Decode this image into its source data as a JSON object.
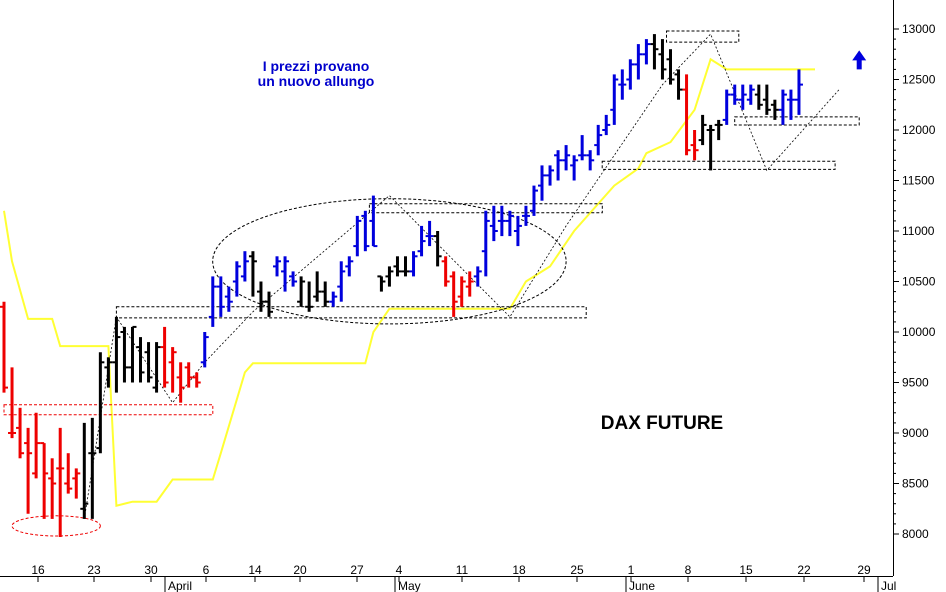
{
  "chart_data": {
    "type": "ohlc",
    "title": "DAX FUTURE",
    "annotation": [
      "I prezzi provano",
      "un nuovo allungo"
    ],
    "y_ticks": [
      8000,
      8500,
      9000,
      9500,
      10000,
      10500,
      11000,
      11500,
      12000,
      12500,
      13000
    ],
    "ylim": [
      7920,
      13150
    ],
    "x_ticks": [
      "16",
      "23",
      "30",
      "6",
      "14",
      "20",
      "27",
      "4",
      "11",
      "18",
      "25",
      "1",
      "8",
      "15",
      "22",
      "29"
    ],
    "month_labels": [
      "April",
      "May",
      "June",
      "Jul"
    ],
    "grid": false,
    "colors": {
      "up": "#0000dd",
      "neutral": "#000000",
      "down": "#ee0000",
      "trail": "#ffff33",
      "box": "#000000",
      "red_box": "#ee0000",
      "arrow": "#0000dd"
    },
    "bars": [
      {
        "o": 10250,
        "h": 10300,
        "l": 9400,
        "c": 9450,
        "col": "down"
      },
      {
        "o": 9000,
        "h": 9650,
        "l": 8950,
        "c": 9000,
        "col": "down"
      },
      {
        "o": 9050,
        "h": 9250,
        "l": 8750,
        "c": 8800,
        "col": "down"
      },
      {
        "o": 8900,
        "h": 9050,
        "l": 8200,
        "c": 8800,
        "col": "down"
      },
      {
        "o": 8600,
        "h": 9200,
        "l": 8550,
        "c": 8900,
        "col": "down"
      },
      {
        "o": 8900,
        "h": 8900,
        "l": 8150,
        "c": 8600,
        "col": "down"
      },
      {
        "o": 8550,
        "h": 8750,
        "l": 8150,
        "c": 8500,
        "col": "down"
      },
      {
        "o": 8650,
        "h": 9050,
        "l": 7970,
        "c": 8650,
        "col": "down"
      },
      {
        "o": 8500,
        "h": 8800,
        "l": 8400,
        "c": 8450,
        "col": "down"
      },
      {
        "o": 8550,
        "h": 8650,
        "l": 8350,
        "c": 8600,
        "col": "down"
      },
      {
        "o": 8250,
        "h": 9100,
        "l": 8150,
        "c": 8300,
        "col": "neutral"
      },
      {
        "o": 8800,
        "h": 9150,
        "l": 8150,
        "c": 8800,
        "col": "neutral"
      },
      {
        "o": 8850,
        "h": 9800,
        "l": 8800,
        "c": 9700,
        "col": "neutral"
      },
      {
        "o": 9650,
        "h": 9750,
        "l": 9450,
        "c": 9700,
        "col": "neutral"
      },
      {
        "o": 9700,
        "h": 10150,
        "l": 9400,
        "c": 9950,
        "col": "neutral"
      },
      {
        "o": 10000,
        "h": 10050,
        "l": 9500,
        "c": 9650,
        "col": "neutral"
      },
      {
        "o": 9650,
        "h": 10050,
        "l": 9500,
        "c": 10050,
        "col": "neutral"
      },
      {
        "o": 9850,
        "h": 9950,
        "l": 9500,
        "c": 9600,
        "col": "neutral"
      },
      {
        "o": 9800,
        "h": 9900,
        "l": 9500,
        "c": 9550,
        "col": "neutral"
      },
      {
        "o": 9450,
        "h": 9900,
        "l": 9400,
        "c": 9850,
        "col": "neutral"
      },
      {
        "o": 9850,
        "h": 10050,
        "l": 9450,
        "c": 9500,
        "col": "down"
      },
      {
        "o": 9700,
        "h": 9850,
        "l": 9400,
        "c": 9800,
        "col": "down"
      },
      {
        "o": 9550,
        "h": 9700,
        "l": 9300,
        "c": 9450,
        "col": "down"
      },
      {
        "o": 9650,
        "h": 9700,
        "l": 9450,
        "c": 9550,
        "col": "down"
      },
      {
        "o": 9550,
        "h": 9600,
        "l": 9450,
        "c": 9500,
        "col": "down"
      },
      {
        "o": 9700,
        "h": 10000,
        "l": 9650,
        "c": 9950,
        "col": "up"
      },
      {
        "o": 10150,
        "h": 10550,
        "l": 10050,
        "c": 10450,
        "col": "up"
      },
      {
        "o": 10450,
        "h": 10550,
        "l": 10150,
        "c": 10250,
        "col": "up"
      },
      {
        "o": 10350,
        "h": 10450,
        "l": 10200,
        "c": 10300,
        "col": "up"
      },
      {
        "o": 10500,
        "h": 10700,
        "l": 10350,
        "c": 10650,
        "col": "up"
      },
      {
        "o": 10550,
        "h": 10800,
        "l": 10500,
        "c": 10700,
        "col": "up"
      },
      {
        "o": 10750,
        "h": 10800,
        "l": 10350,
        "c": 10700,
        "col": "neutral"
      },
      {
        "o": 10400,
        "h": 10500,
        "l": 10200,
        "c": 10300,
        "col": "neutral"
      },
      {
        "o": 10300,
        "h": 10400,
        "l": 10150,
        "c": 10200,
        "col": "neutral"
      },
      {
        "o": 10650,
        "h": 10750,
        "l": 10550,
        "c": 10700,
        "col": "up"
      },
      {
        "o": 10600,
        "h": 10750,
        "l": 10400,
        "c": 10700,
        "col": "up"
      },
      {
        "o": 10550,
        "h": 10600,
        "l": 10450,
        "c": 10500,
        "col": "up"
      },
      {
        "o": 10300,
        "h": 10550,
        "l": 10250,
        "c": 10500,
        "col": "neutral"
      },
      {
        "o": 10250,
        "h": 10500,
        "l": 10200,
        "c": 10250,
        "col": "neutral"
      },
      {
        "o": 10350,
        "h": 10600,
        "l": 10300,
        "c": 10400,
        "col": "neutral"
      },
      {
        "o": 10400,
        "h": 10500,
        "l": 10250,
        "c": 10300,
        "col": "neutral"
      },
      {
        "o": 10300,
        "h": 10400,
        "l": 10250,
        "c": 10350,
        "col": "up"
      },
      {
        "o": 10450,
        "h": 10700,
        "l": 10300,
        "c": 10600,
        "col": "up"
      },
      {
        "o": 10650,
        "h": 10750,
        "l": 10550,
        "c": 10700,
        "col": "up"
      },
      {
        "o": 10850,
        "h": 11150,
        "l": 10750,
        "c": 11100,
        "col": "up"
      },
      {
        "o": 11150,
        "h": 11200,
        "l": 10800,
        "c": 10850,
        "col": "up"
      },
      {
        "o": 11100,
        "h": 11350,
        "l": 10850,
        "c": 10850,
        "col": "up"
      },
      {
        "o": 10550,
        "h": 10550,
        "l": 10400,
        "c": 10500,
        "col": "neutral"
      },
      {
        "o": 10550,
        "h": 10650,
        "l": 10450,
        "c": 10600,
        "col": "neutral"
      },
      {
        "o": 10650,
        "h": 10750,
        "l": 10550,
        "c": 10600,
        "col": "neutral"
      },
      {
        "o": 10600,
        "h": 10750,
        "l": 10550,
        "c": 10600,
        "col": "neutral"
      },
      {
        "o": 10600,
        "h": 10800,
        "l": 10550,
        "c": 10750,
        "col": "up"
      },
      {
        "o": 10800,
        "h": 11050,
        "l": 10750,
        "c": 10900,
        "col": "up"
      },
      {
        "o": 10950,
        "h": 11100,
        "l": 10850,
        "c": 10950,
        "col": "up"
      },
      {
        "o": 10950,
        "h": 11000,
        "l": 10650,
        "c": 10750,
        "col": "neutral"
      },
      {
        "o": 10700,
        "h": 10750,
        "l": 10450,
        "c": 10500,
        "col": "down"
      },
      {
        "o": 10550,
        "h": 10600,
        "l": 10150,
        "c": 10300,
        "col": "down"
      },
      {
        "o": 10350,
        "h": 10550,
        "l": 10250,
        "c": 10500,
        "col": "down"
      },
      {
        "o": 10450,
        "h": 10600,
        "l": 10350,
        "c": 10500,
        "col": "down"
      },
      {
        "o": 10550,
        "h": 10650,
        "l": 10450,
        "c": 10600,
        "col": "up"
      },
      {
        "o": 10800,
        "h": 11200,
        "l": 10550,
        "c": 11100,
        "col": "up"
      },
      {
        "o": 11050,
        "h": 11250,
        "l": 10900,
        "c": 11000,
        "col": "up"
      },
      {
        "o": 11100,
        "h": 11250,
        "l": 10950,
        "c": 11100,
        "col": "up"
      },
      {
        "o": 11100,
        "h": 11200,
        "l": 10950,
        "c": 11150,
        "col": "up"
      },
      {
        "o": 11000,
        "h": 11150,
        "l": 10850,
        "c": 11050,
        "col": "up"
      },
      {
        "o": 11150,
        "h": 11250,
        "l": 11050,
        "c": 11150,
        "col": "up"
      },
      {
        "o": 11200,
        "h": 11450,
        "l": 11150,
        "c": 11400,
        "col": "up"
      },
      {
        "o": 11450,
        "h": 11650,
        "l": 11300,
        "c": 11550,
        "col": "up"
      },
      {
        "o": 11550,
        "h": 11650,
        "l": 11450,
        "c": 11600,
        "col": "up"
      },
      {
        "o": 11750,
        "h": 11800,
        "l": 11500,
        "c": 11700,
        "col": "up"
      },
      {
        "o": 11700,
        "h": 11850,
        "l": 11600,
        "c": 11750,
        "col": "up"
      },
      {
        "o": 11650,
        "h": 11750,
        "l": 11500,
        "c": 11700,
        "col": "up"
      },
      {
        "o": 11750,
        "h": 11950,
        "l": 11700,
        "c": 11750,
        "col": "up"
      },
      {
        "o": 11750,
        "h": 11800,
        "l": 11600,
        "c": 11700,
        "col": "up"
      },
      {
        "o": 11850,
        "h": 12050,
        "l": 11750,
        "c": 11950,
        "col": "up"
      },
      {
        "o": 12000,
        "h": 12150,
        "l": 11950,
        "c": 12050,
        "col": "up"
      },
      {
        "o": 12200,
        "h": 12550,
        "l": 12050,
        "c": 12500,
        "col": "up"
      },
      {
        "o": 12450,
        "h": 12600,
        "l": 12300,
        "c": 12450,
        "col": "up"
      },
      {
        "o": 12500,
        "h": 12700,
        "l": 12400,
        "c": 12650,
        "col": "up"
      },
      {
        "o": 12650,
        "h": 12850,
        "l": 12500,
        "c": 12750,
        "col": "up"
      },
      {
        "o": 12750,
        "h": 12900,
        "l": 12650,
        "c": 12850,
        "col": "up"
      },
      {
        "o": 12850,
        "h": 12950,
        "l": 12600,
        "c": 12800,
        "col": "neutral"
      },
      {
        "o": 12750,
        "h": 12900,
        "l": 12500,
        "c": 12600,
        "col": "neutral"
      },
      {
        "o": 12700,
        "h": 12800,
        "l": 12450,
        "c": 12500,
        "col": "neutral"
      },
      {
        "o": 12550,
        "h": 12600,
        "l": 12300,
        "c": 12400,
        "col": "neutral"
      },
      {
        "o": 12400,
        "h": 12550,
        "l": 11750,
        "c": 11800,
        "col": "down"
      },
      {
        "o": 11850,
        "h": 12000,
        "l": 11700,
        "c": 11800,
        "col": "down"
      },
      {
        "o": 11900,
        "h": 12150,
        "l": 11850,
        "c": 12050,
        "col": "neutral"
      },
      {
        "o": 12000,
        "h": 12050,
        "l": 11600,
        "c": 12000,
        "col": "neutral"
      },
      {
        "o": 12050,
        "h": 12100,
        "l": 11900,
        "c": 12050,
        "col": "neutral"
      },
      {
        "o": 12100,
        "h": 12400,
        "l": 12050,
        "c": 12350,
        "col": "up"
      },
      {
        "o": 12350,
        "h": 12450,
        "l": 12250,
        "c": 12300,
        "col": "up"
      },
      {
        "o": 12300,
        "h": 12450,
        "l": 12200,
        "c": 12350,
        "col": "up"
      },
      {
        "o": 12300,
        "h": 12450,
        "l": 12250,
        "c": 12400,
        "col": "up"
      },
      {
        "o": 12350,
        "h": 12450,
        "l": 12200,
        "c": 12250,
        "col": "neutral"
      },
      {
        "o": 12300,
        "h": 12450,
        "l": 12150,
        "c": 12200,
        "col": "neutral"
      },
      {
        "o": 12250,
        "h": 12300,
        "l": 12100,
        "c": 12200,
        "col": "neutral"
      },
      {
        "o": 12200,
        "h": 12400,
        "l": 12050,
        "c": 12350,
        "col": "up"
      },
      {
        "o": 12300,
        "h": 12400,
        "l": 12100,
        "c": 12300,
        "col": "up"
      },
      {
        "o": 12300,
        "h": 12600,
        "l": 12150,
        "c": 12450,
        "col": "up"
      }
    ],
    "trailing_stop": [
      [
        0,
        11200
      ],
      [
        1,
        10700
      ],
      [
        3,
        10130
      ],
      [
        6,
        10130
      ],
      [
        7,
        9860
      ],
      [
        13,
        9860
      ],
      [
        14,
        8280
      ],
      [
        16,
        8320
      ],
      [
        19,
        8320
      ],
      [
        21,
        8540
      ],
      [
        26,
        8540
      ],
      [
        27,
        8800
      ],
      [
        30,
        9600
      ],
      [
        31,
        9690
      ],
      [
        45,
        9690
      ],
      [
        46,
        10000
      ],
      [
        48,
        10230
      ],
      [
        63,
        10230
      ],
      [
        65,
        10500
      ],
      [
        68,
        10650
      ],
      [
        71,
        11000
      ],
      [
        76,
        11450
      ],
      [
        79,
        11620
      ],
      [
        80,
        11770
      ],
      [
        83,
        11880
      ],
      [
        86,
        12200
      ],
      [
        88,
        12700
      ],
      [
        90,
        12600
      ],
      [
        97,
        12600
      ],
      [
        101,
        12600
      ]
    ],
    "boxes": [
      {
        "x1": 14,
        "x2": 72.5,
        "y1": 10140,
        "y2": 10250,
        "col": "box"
      },
      {
        "x1": 0,
        "x2": 26,
        "y1": 9180,
        "y2": 9280,
        "col": "red_box"
      },
      {
        "x1": 45.5,
        "x2": 74.5,
        "y1": 11180,
        "y2": 11270,
        "col": "box"
      },
      {
        "x1": 74.5,
        "x2": 103.5,
        "y1": 11610,
        "y2": 11690,
        "col": "box"
      },
      {
        "x1": 82.5,
        "x2": 91.5,
        "y1": 12870,
        "y2": 12980,
        "col": "box"
      },
      {
        "x1": 91,
        "x2": 106.5,
        "y1": 12050,
        "y2": 12130,
        "col": "box"
      }
    ],
    "ellipses": [
      {
        "cx": 6.5,
        "cy": 8080,
        "rx": 5.5,
        "ry": 100,
        "col": "red_box"
      },
      {
        "cx": 48,
        "cy": 10700,
        "rx": 22,
        "ry": 620,
        "col": "box"
      }
    ],
    "trendlines": [
      {
        "pts": [
          [
            10,
            8150
          ],
          [
            14,
            10150
          ],
          [
            21,
            9300
          ],
          [
            25,
            9700
          ],
          [
            31,
            10200
          ],
          [
            48,
            11350
          ],
          [
            63,
            10150
          ],
          [
            70,
            11050
          ],
          [
            82,
            12450
          ],
          [
            88,
            12950
          ],
          [
            95,
            11600
          ],
          [
            104,
            12400
          ]
        ]
      }
    ],
    "arrow": {
      "x": 106.5,
      "y": 12600
    }
  }
}
